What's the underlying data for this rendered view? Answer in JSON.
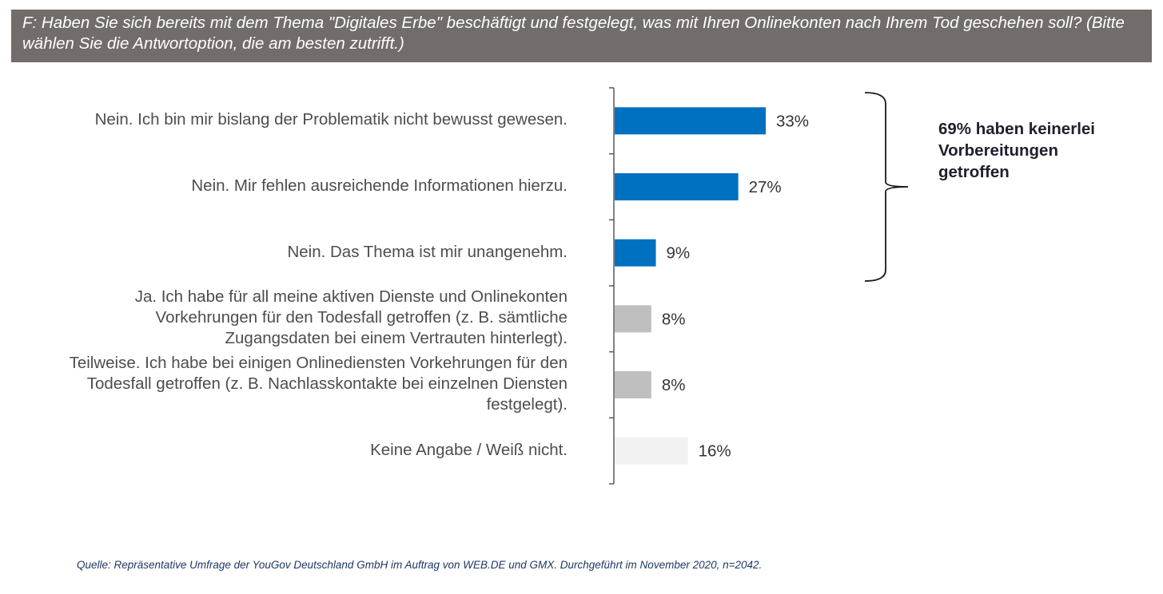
{
  "header": {
    "question": "F: Haben Sie sich bereits mit dem Thema \"Digitales Erbe\" beschäftigt und festgelegt, was mit Ihren Onlinekonten nach Ihrem Tod geschehen soll? (Bitte wählen Sie die Antwortoption, die am besten zutrifft.)"
  },
  "colors": {
    "header_bg": "#726d6b",
    "blue": "#0070c0",
    "gray": "#bfbfbf",
    "light_gray": "#f2f2f2"
  },
  "annotation": {
    "text": "69% haben keinerlei Vorbereitungen getroffen"
  },
  "source": "Quelle: Repräsentative Umfrage der YouGov Deutschland GmbH im Auftrag von WEB.DE und GMX. Durchgeführt im November 2020, n=2042.",
  "chart_data": {
    "type": "bar",
    "orientation": "horizontal",
    "categories": [
      "Nein. Ich bin mir bislang der Problematik nicht bewusst gewesen.",
      "Nein. Mir fehlen ausreichende Informationen hierzu.",
      "Nein. Das Thema ist mir unangenehm.",
      "Ja. Ich habe für all meine aktiven Dienste und Onlinekonten Vorkehrungen für den Todesfall getroffen (z. B. sämtliche Zugangsdaten bei einem Vertrauten hinterlegt).",
      "Teilweise. Ich habe bei einigen Onlinediensten Vorkehrungen für den Todesfall getroffen (z. B. Nachlasskontakte bei einzelnen Diensten festgelegt).",
      "Keine Angabe / Weiß nicht."
    ],
    "values": [
      33,
      27,
      9,
      8,
      8,
      16
    ],
    "value_labels": [
      "33%",
      "27%",
      "9%",
      "8%",
      "8%",
      "16%"
    ],
    "bar_colors": [
      "#0070c0",
      "#0070c0",
      "#0070c0",
      "#bfbfbf",
      "#bfbfbf",
      "#f2f2f2"
    ],
    "xlim": [
      0,
      100
    ],
    "grid": false,
    "bracket_groups": [
      [
        0,
        1,
        2
      ]
    ]
  }
}
